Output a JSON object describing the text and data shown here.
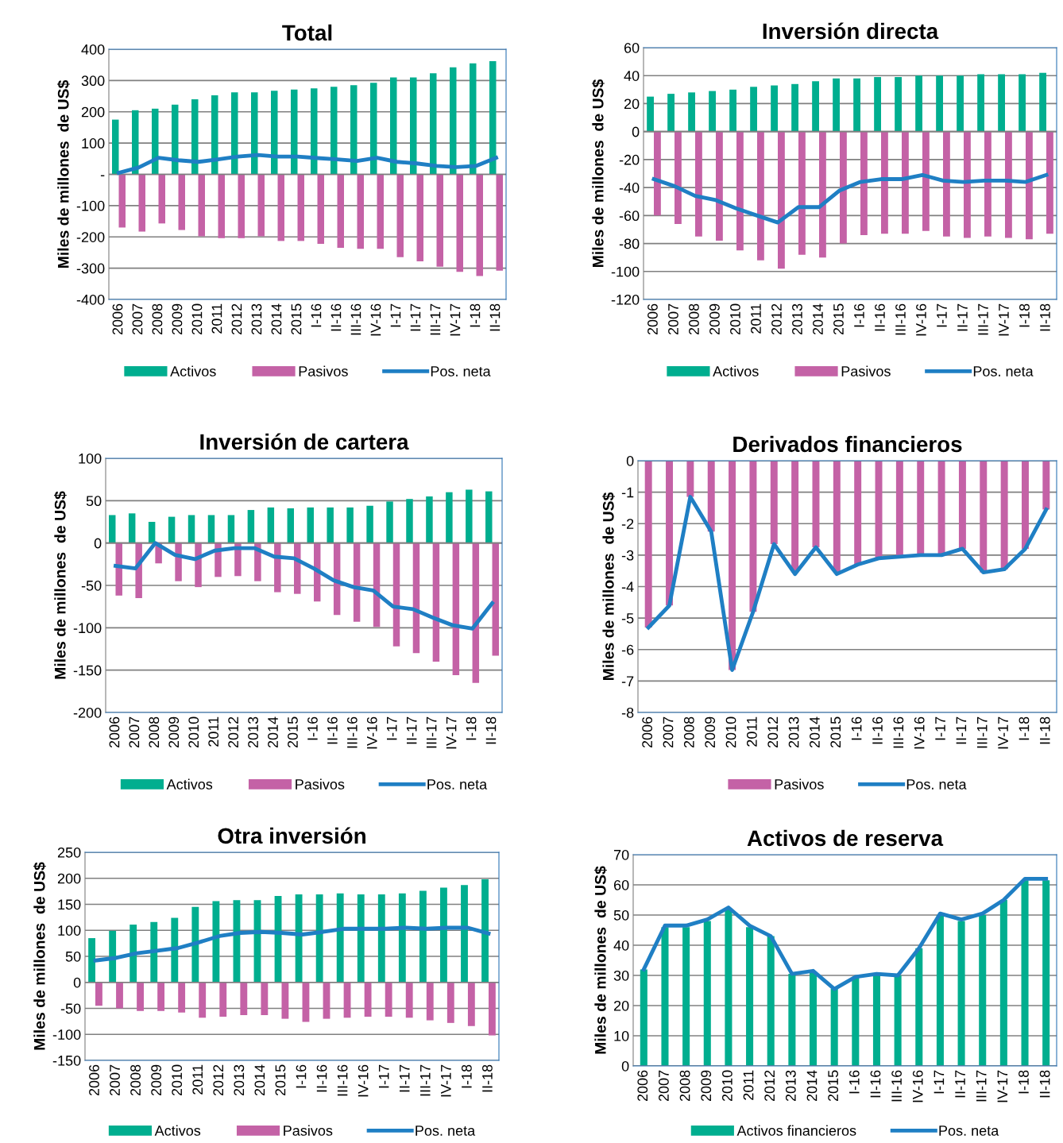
{
  "chart_data": [
    {
      "type": "bar",
      "title": "Total",
      "ylabel": "Miles de millones  de US$",
      "categories": [
        "2006",
        "2007",
        "2008",
        "2009",
        "2010",
        "2011",
        "2012",
        "2013",
        "2014",
        "2015",
        "I-16",
        "II-16",
        "III-16",
        "IV-16",
        "I-17",
        "II-17",
        "III-17",
        "IV-17",
        "I-18",
        "II-18"
      ],
      "series": [
        {
          "name": "Activos",
          "color": "#00ae8f",
          "values": [
            175,
            205,
            210,
            223,
            240,
            253,
            262,
            262,
            267,
            271,
            275,
            280,
            285,
            293,
            310,
            310,
            323,
            342,
            355,
            362
          ]
        },
        {
          "name": "Pasivos",
          "color": "#c462a6",
          "values": [
            -170,
            -183,
            -157,
            -178,
            -198,
            -204,
            -204,
            -198,
            -213,
            -213,
            -222,
            -235,
            -238,
            -238,
            -265,
            -278,
            -295,
            -312,
            -325,
            -308
          ]
        },
        {
          "name": "Pos. neta",
          "type": "line",
          "color": "#1f7fc4",
          "values": [
            5,
            22,
            53,
            45,
            40,
            48,
            57,
            62,
            57,
            57,
            52,
            48,
            43,
            53,
            40,
            35,
            27,
            23,
            27,
            53
          ]
        }
      ],
      "ylim": [
        -400,
        400
      ],
      "yticks": [
        -400,
        -300,
        -200,
        -100,
        {
          "value": 0,
          "label": "-"
        },
        100,
        200,
        300,
        400
      ],
      "grid": "y",
      "legend": "bottom"
    },
    {
      "type": "bar",
      "title": "Inversión directa",
      "ylabel": "Miles de millones  de US$",
      "categories": [
        "2006",
        "2007",
        "2008",
        "2009",
        "2010",
        "2011",
        "2012",
        "2013",
        "2014",
        "2015",
        "I-16",
        "II-16",
        "III-16",
        "IV-16",
        "I-17",
        "II-17",
        "III-17",
        "IV-17",
        "I-18",
        "II-18"
      ],
      "series": [
        {
          "name": "Activos",
          "color": "#00ae8f",
          "values": [
            25,
            27,
            28,
            29,
            30,
            32,
            33,
            34,
            36,
            38,
            38,
            39,
            39,
            40,
            40,
            40,
            41,
            41,
            41,
            42
          ]
        },
        {
          "name": "Pasivos",
          "color": "#c462a6",
          "values": [
            -60,
            -66,
            -75,
            -78,
            -85,
            -92,
            -98,
            -88,
            -90,
            -80,
            -74,
            -73,
            -73,
            -71,
            -75,
            -76,
            -75,
            -76,
            -77,
            -73
          ]
        },
        {
          "name": "Pos. neta",
          "type": "line",
          "color": "#1f7fc4",
          "values": [
            -34,
            -39,
            -46,
            -49,
            -55,
            -60,
            -65,
            -54,
            -54,
            -42,
            -36,
            -34,
            -34,
            -31,
            -35,
            -36,
            -35,
            -35,
            -36,
            -31
          ]
        }
      ],
      "ylim": [
        -120,
        60
      ],
      "yticks": [
        -120,
        -100,
        -80,
        -60,
        -40,
        -20,
        0,
        20,
        40,
        60
      ],
      "grid": "y",
      "legend": "bottom"
    },
    {
      "type": "bar",
      "title": "Inversión de cartera",
      "ylabel": "Miles de millones  de US$",
      "categories": [
        "2006",
        "2007",
        "2008",
        "2009",
        "2010",
        "2011",
        "2012",
        "2013",
        "2014",
        "2015",
        "I-16",
        "II-16",
        "III-16",
        "IV-16",
        "I-17",
        "II-17",
        "III-17",
        "IV-17",
        "I-18",
        "II-18"
      ],
      "series": [
        {
          "name": "Activos",
          "color": "#00ae8f",
          "values": [
            33,
            35,
            25,
            31,
            33,
            33,
            33,
            39,
            42,
            41,
            42,
            42,
            42,
            44,
            49,
            52,
            55,
            60,
            63,
            61
          ]
        },
        {
          "name": "Pasivos",
          "color": "#c462a6",
          "values": [
            -62,
            -65,
            -24,
            -45,
            -52,
            -40,
            -39,
            -45,
            -58,
            -60,
            -69,
            -85,
            -93,
            -99,
            -122,
            -130,
            -140,
            -156,
            -165,
            -133
          ]
        },
        {
          "name": "Pos. neta",
          "type": "line",
          "color": "#1f7fc4",
          "values": [
            -27,
            -30,
            0,
            -14,
            -19,
            -9,
            -6,
            -6,
            -16,
            -18,
            -30,
            -44,
            -52,
            -56,
            -75,
            -78,
            -88,
            -97,
            -101,
            -71
          ]
        }
      ],
      "ylim": [
        -200,
        100
      ],
      "yticks": [
        -200,
        -150,
        -100,
        -50,
        0,
        50,
        100
      ],
      "grid": "y",
      "legend": "bottom"
    },
    {
      "type": "bar",
      "title": "Derivados financieros",
      "ylabel": "Miles de millones  de US$",
      "categories": [
        "2006",
        "2007",
        "2008",
        "2009",
        "2010",
        "2011",
        "2012",
        "2013",
        "2014",
        "2015",
        "I-16",
        "II-16",
        "III-16",
        "IV-16",
        "I-17",
        "II-17",
        "III-17",
        "IV-17",
        "I-18",
        "II-18"
      ],
      "series": [
        {
          "name": "Pasivos",
          "color": "#c462a6",
          "values": [
            -5.3,
            -4.6,
            -1.15,
            -2.25,
            -6.65,
            -4.8,
            -2.65,
            -3.55,
            -2.75,
            -3.55,
            -3.3,
            -3.1,
            -3.0,
            -3.0,
            -3.0,
            -2.8,
            -3.55,
            -3.45,
            -2.8,
            -1.55
          ]
        },
        {
          "name": "Pos. neta",
          "type": "line",
          "color": "#1f7fc4",
          "values": [
            -5.3,
            -4.6,
            -1.15,
            -2.25,
            -6.65,
            -4.8,
            -2.65,
            -3.6,
            -2.75,
            -3.6,
            -3.3,
            -3.1,
            -3.05,
            -3.0,
            -3.0,
            -2.8,
            -3.55,
            -3.45,
            -2.8,
            -1.55
          ]
        }
      ],
      "ylim": [
        -8,
        0
      ],
      "yticks": [
        -8,
        -7,
        -6,
        -5,
        -4,
        -3,
        -2,
        -1,
        0
      ],
      "grid": "y",
      "legend": "bottom"
    },
    {
      "type": "bar",
      "title": "Otra inversión",
      "ylabel": "Miles de millones  de US$",
      "categories": [
        "2006",
        "2007",
        "2008",
        "2009",
        "2010",
        "2011",
        "2012",
        "2013",
        "2014",
        "2015",
        "I-16",
        "II-16",
        "III-16",
        "IV-16",
        "I-17",
        "II-17",
        "III-17",
        "IV-17",
        "I-18",
        "II-18"
      ],
      "series": [
        {
          "name": "Activos",
          "color": "#00ae8f",
          "values": [
            85,
            99,
            111,
            116,
            124,
            145,
            156,
            158,
            158,
            166,
            169,
            169,
            171,
            169,
            169,
            171,
            176,
            182,
            187,
            198
          ]
        },
        {
          "name": "Pasivos",
          "color": "#c462a6",
          "values": [
            -45,
            -50,
            -55,
            -55,
            -58,
            -68,
            -66,
            -63,
            -63,
            -70,
            -76,
            -70,
            -68,
            -66,
            -66,
            -68,
            -73,
            -78,
            -84,
            -102
          ]
        },
        {
          "name": "Pos. neta",
          "type": "line",
          "color": "#1f7fc4",
          "values": [
            42,
            47,
            56,
            61,
            66,
            77,
            89,
            95,
            97,
            95,
            92,
            97,
            103,
            103,
            103,
            105,
            103,
            105,
            105,
            94
          ]
        }
      ],
      "ylim": [
        -150,
        250
      ],
      "yticks": [
        -150,
        -100,
        -50,
        0,
        50,
        100,
        150,
        200,
        250
      ],
      "grid": "y",
      "legend": "bottom"
    },
    {
      "type": "bar",
      "title": "Activos de reserva",
      "ylabel": "Miles de millones  de US$",
      "categories": [
        "2006",
        "2007",
        "2008",
        "2009",
        "2010",
        "2011",
        "2012",
        "2013",
        "2014",
        "2015",
        "I-16",
        "II-16",
        "III-16",
        "IV-16",
        "I-17",
        "II-17",
        "III-17",
        "IV-17",
        "I-18",
        "II-18"
      ],
      "series": [
        {
          "name": "Activos financieros",
          "color": "#00ae8f",
          "values": [
            32,
            46,
            46,
            48,
            52,
            46,
            43,
            30.5,
            31,
            25.5,
            29.5,
            30.5,
            30,
            39,
            50,
            48,
            50,
            55,
            61.5,
            61.5
          ]
        },
        {
          "name": "Pos. neta",
          "type": "line",
          "color": "#1f7fc4",
          "values": [
            32,
            46.5,
            46.5,
            48.5,
            52.5,
            46.5,
            43,
            30.5,
            31.5,
            25.5,
            29.5,
            30.5,
            30,
            39,
            50.5,
            48.5,
            50.5,
            55,
            62,
            62
          ]
        }
      ],
      "ylim": [
        0,
        70
      ],
      "yticks": [
        0,
        10,
        20,
        30,
        40,
        50,
        60,
        70
      ],
      "grid": "y",
      "legend": "bottom"
    }
  ]
}
